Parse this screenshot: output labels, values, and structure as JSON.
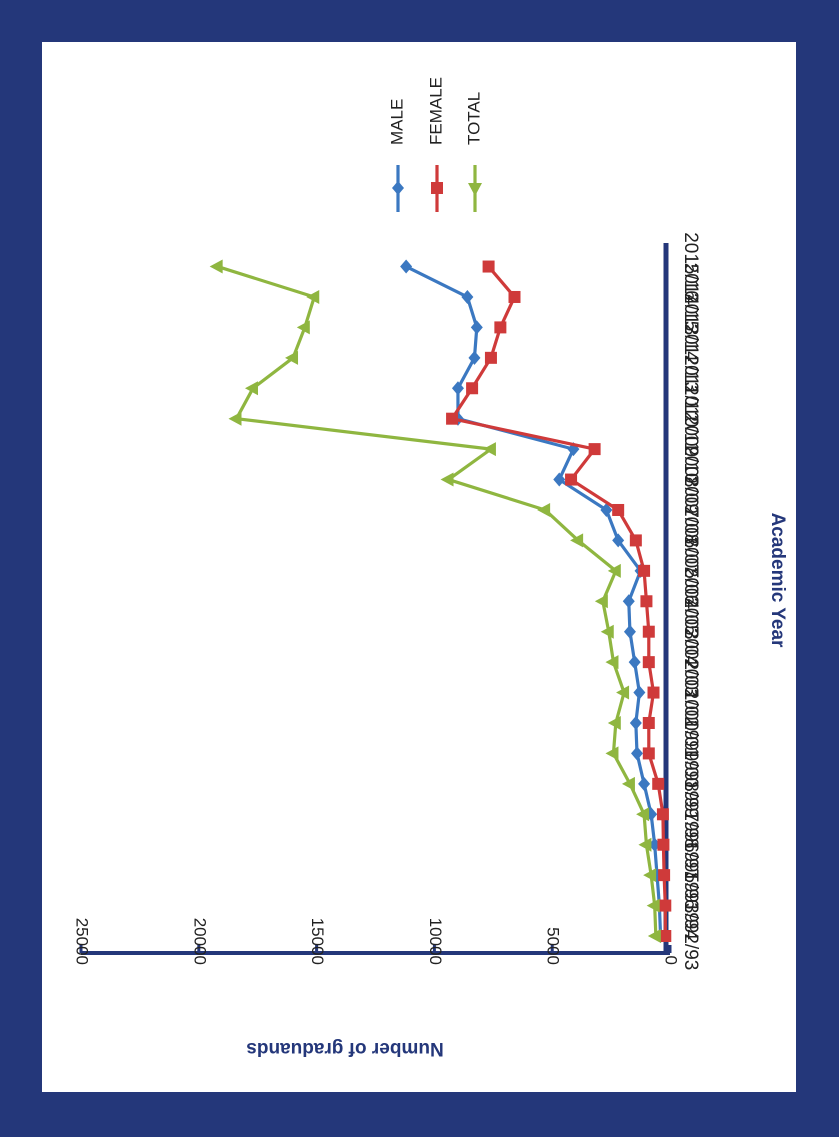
{
  "chart_data": {
    "type": "line",
    "orientation": "rotated 90 degrees clockwise",
    "title": "",
    "xlabel": "Academic Year",
    "ylabel": "Number of graduands",
    "categories": [
      "1992/93",
      "1993/94",
      "1995/96",
      "1996/97",
      "1997/98",
      "1998/99",
      "1999/00",
      "2000/01",
      "2001/02",
      "2002/03",
      "2003/04",
      "2004/05",
      "2005/06",
      "2006/07",
      "2007/08",
      "2008/09",
      "2009/10",
      "2010/11",
      "2011/12",
      "2012/13",
      "2013/14",
      "2014/15",
      "2015/16"
    ],
    "ylim": [
      0,
      25000
    ],
    "yticks": [
      "0",
      "5000",
      "10000",
      "15000",
      "20000",
      "25000"
    ],
    "grid": false,
    "legend_position": "top-right",
    "colors": {
      "frame": "#24377a",
      "axis": "#24377a",
      "label": "#24377a"
    },
    "series": [
      {
        "name": "MALE",
        "color": "#3b78c1",
        "marker": "diamond",
        "values": [
          400,
          450,
          550,
          650,
          800,
          1100,
          1400,
          1450,
          1300,
          1500,
          1700,
          1750,
          1250,
          2200,
          2700,
          4700,
          4100,
          9000,
          9000,
          8300,
          8200,
          8600,
          11200
        ]
      },
      {
        "name": "FEMALE",
        "color": "#cf3a3a",
        "marker": "square",
        "values": [
          200,
          200,
          250,
          280,
          300,
          500,
          900,
          900,
          700,
          900,
          900,
          1000,
          1100,
          1450,
          2200,
          4200,
          3200,
          9250,
          8400,
          7600,
          7200,
          6600,
          7700
        ]
      },
      {
        "name": "TOTAL",
        "color": "#8fb640",
        "marker": "triangle",
        "values": [
          600,
          650,
          800,
          1000,
          1100,
          1700,
          2400,
          2300,
          1950,
          2400,
          2600,
          2850,
          2300,
          3900,
          5300,
          9400,
          7600,
          18400,
          17700,
          16000,
          15500,
          15100,
          19200
        ]
      }
    ]
  }
}
